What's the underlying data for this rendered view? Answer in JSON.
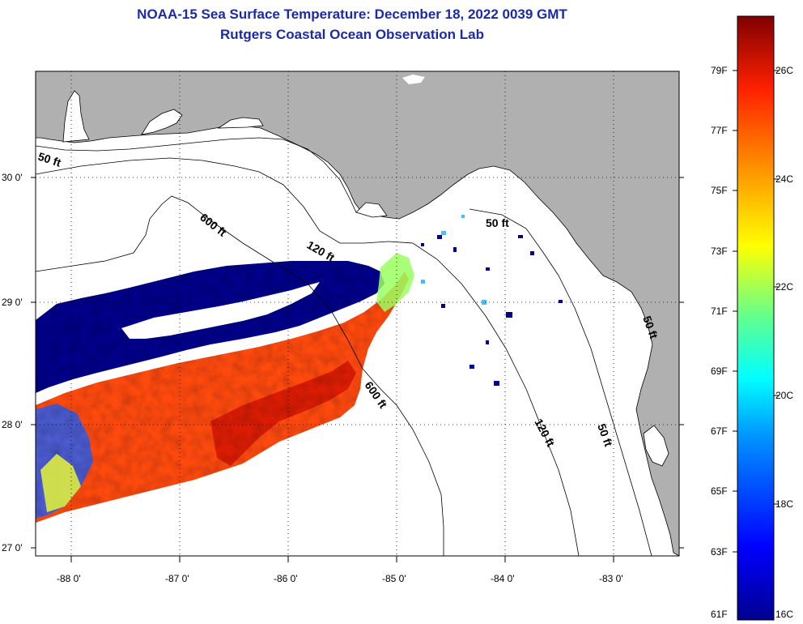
{
  "title": {
    "line1": "NOAA-15 Sea Surface Temperature:  December 18, 2022 0039 GMT",
    "line2": "Rutgers Coastal Ocean Observation Lab"
  },
  "map": {
    "lat_labels": [
      "30 0'",
      "29 0'",
      "28 0'",
      "27 0'"
    ],
    "lon_labels": [
      "-88 0'",
      "-87 0'",
      "-86 0'",
      "-85 0'",
      "-84 0'",
      "-83 0'"
    ],
    "contours": [
      "50 ft",
      "600 ft",
      "120 ft",
      "50 ft",
      "600 ft",
      "120 ft",
      "50 ft",
      "50 ft"
    ]
  },
  "colorbar": {
    "fahrenheit": [
      "79F",
      "77F",
      "75F",
      "73F",
      "71F",
      "69F",
      "67F",
      "65F",
      "63F",
      "61F"
    ],
    "celsius": [
      "26C",
      "24C",
      "22C",
      "20C",
      "18C",
      "16C"
    ]
  },
  "colors": {
    "title": "#1a2aa8",
    "land": "#b0b0b0",
    "ocean_no_data": "#ffffff",
    "cold": "#00008b",
    "warm": "#ff3000"
  }
}
